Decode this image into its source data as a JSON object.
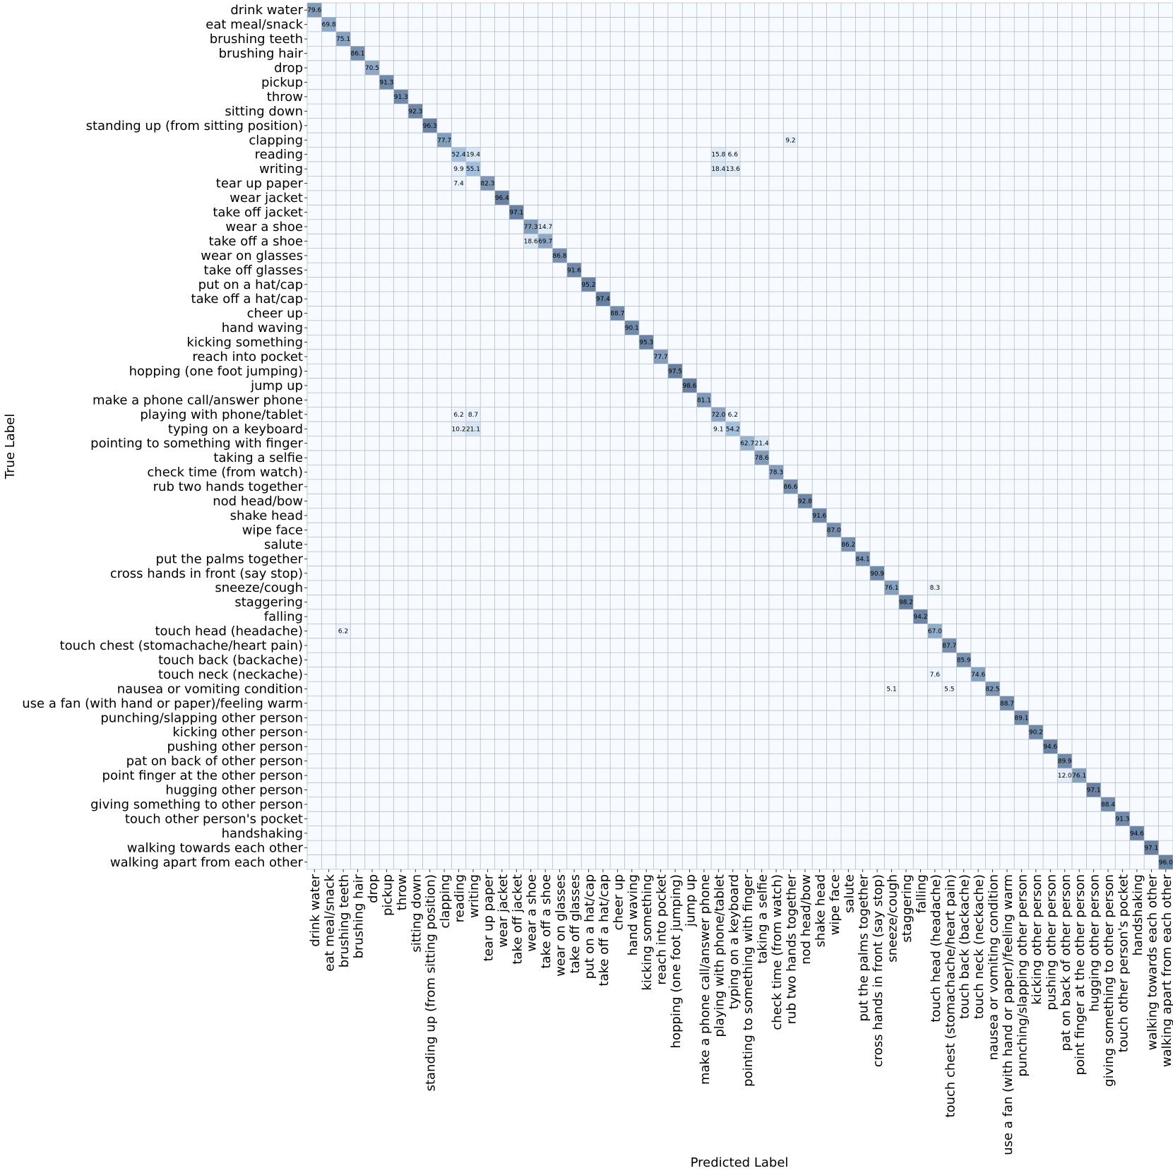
{
  "chart_data": {
    "type": "heatmap",
    "xlabel": "Predicted Label",
    "ylabel": "True Label",
    "categories": [
      "drink water",
      "eat meal/snack",
      "brushing teeth",
      "brushing hair",
      "drop",
      "pickup",
      "throw",
      "sitting down",
      "standing up (from sitting position)",
      "clapping",
      "reading",
      "writing",
      "tear up paper",
      "wear jacket",
      "take off jacket",
      "wear a shoe",
      "take off a shoe",
      "wear on glasses",
      "take off glasses",
      "put on a hat/cap",
      "take off a hat/cap",
      "cheer up",
      "hand waving",
      "kicking something",
      "reach into pocket",
      "hopping (one foot jumping)",
      "jump up",
      "make a phone call/answer phone",
      "playing with phone/tablet",
      "typing on a keyboard",
      "pointing to something with finger",
      "taking a selfie",
      "check time (from watch)",
      "rub two hands together",
      "nod head/bow",
      "shake head",
      "wipe face",
      "salute",
      "put the palms together",
      "cross hands in front (say stop)",
      "sneeze/cough",
      "staggering",
      "falling",
      "touch head (headache)",
      "touch chest (stomachache/heart pain)",
      "touch back (backache)",
      "touch neck (neckache)",
      "nausea or vomiting condition",
      "use a fan (with hand or paper)/feeling warm",
      "punching/slapping other person",
      "kicking other person",
      "pushing other person",
      "pat on back of other person",
      "point finger at the other person",
      "hugging other person",
      "giving something to other person",
      "touch other person's pocket",
      "handshaking",
      "walking towards each other",
      "walking apart from each other"
    ],
    "diagonal": [
      79.6,
      69.8,
      75.1,
      86.1,
      70.5,
      91.3,
      91.3,
      92.3,
      96.3,
      77.7,
      52.4,
      55.1,
      82.3,
      96.4,
      97.1,
      77.3,
      69.7,
      86.8,
      91.6,
      95.2,
      97.4,
      88.7,
      90.1,
      95.3,
      77.7,
      97.5,
      98.6,
      81.1,
      72.0,
      54.2,
      62.7,
      78.6,
      78.3,
      86.6,
      92.8,
      91.6,
      87.0,
      86.2,
      84.1,
      90.9,
      76.1,
      98.2,
      94.2,
      67.0,
      87.7,
      85.9,
      74.6,
      82.5,
      88.7,
      89.1,
      90.2,
      94.6,
      89.9,
      76.1,
      97.1,
      88.4,
      91.3,
      94.6,
      97.1,
      96.0
    ],
    "off_diagonal": [
      {
        "row": 9,
        "col": 33,
        "value": 9.2
      },
      {
        "row": 10,
        "col": 11,
        "value": 19.4
      },
      {
        "row": 10,
        "col": 28,
        "value": 15.8
      },
      {
        "row": 10,
        "col": 29,
        "value": 6.6
      },
      {
        "row": 11,
        "col": 10,
        "value": 9.9
      },
      {
        "row": 11,
        "col": 28,
        "value": 18.4
      },
      {
        "row": 11,
        "col": 29,
        "value": 13.6
      },
      {
        "row": 12,
        "col": 10,
        "value": 7.4
      },
      {
        "row": 15,
        "col": 16,
        "value": 14.7
      },
      {
        "row": 16,
        "col": 15,
        "value": 18.6
      },
      {
        "row": 28,
        "col": 10,
        "value": 6.2
      },
      {
        "row": 28,
        "col": 11,
        "value": 8.7
      },
      {
        "row": 28,
        "col": 29,
        "value": 6.2
      },
      {
        "row": 29,
        "col": 10,
        "value": 10.2
      },
      {
        "row": 29,
        "col": 11,
        "value": 21.1
      },
      {
        "row": 29,
        "col": 28,
        "value": 9.1
      },
      {
        "row": 30,
        "col": 31,
        "value": 21.4
      },
      {
        "row": 40,
        "col": 43,
        "value": 8.3
      },
      {
        "row": 43,
        "col": 2,
        "value": 6.2
      },
      {
        "row": 46,
        "col": 43,
        "value": 7.6
      },
      {
        "row": 47,
        "col": 40,
        "value": 5.1
      },
      {
        "row": 47,
        "col": 44,
        "value": 5.5
      },
      {
        "row": 53,
        "col": 52,
        "value": 12.0
      }
    ],
    "vmin": 0,
    "vmax": 100,
    "colormap": {
      "low": "#f7fbff",
      "mid": "#a9c6e2",
      "high": "#667d9d",
      "grid": "#b3bcc6"
    }
  }
}
